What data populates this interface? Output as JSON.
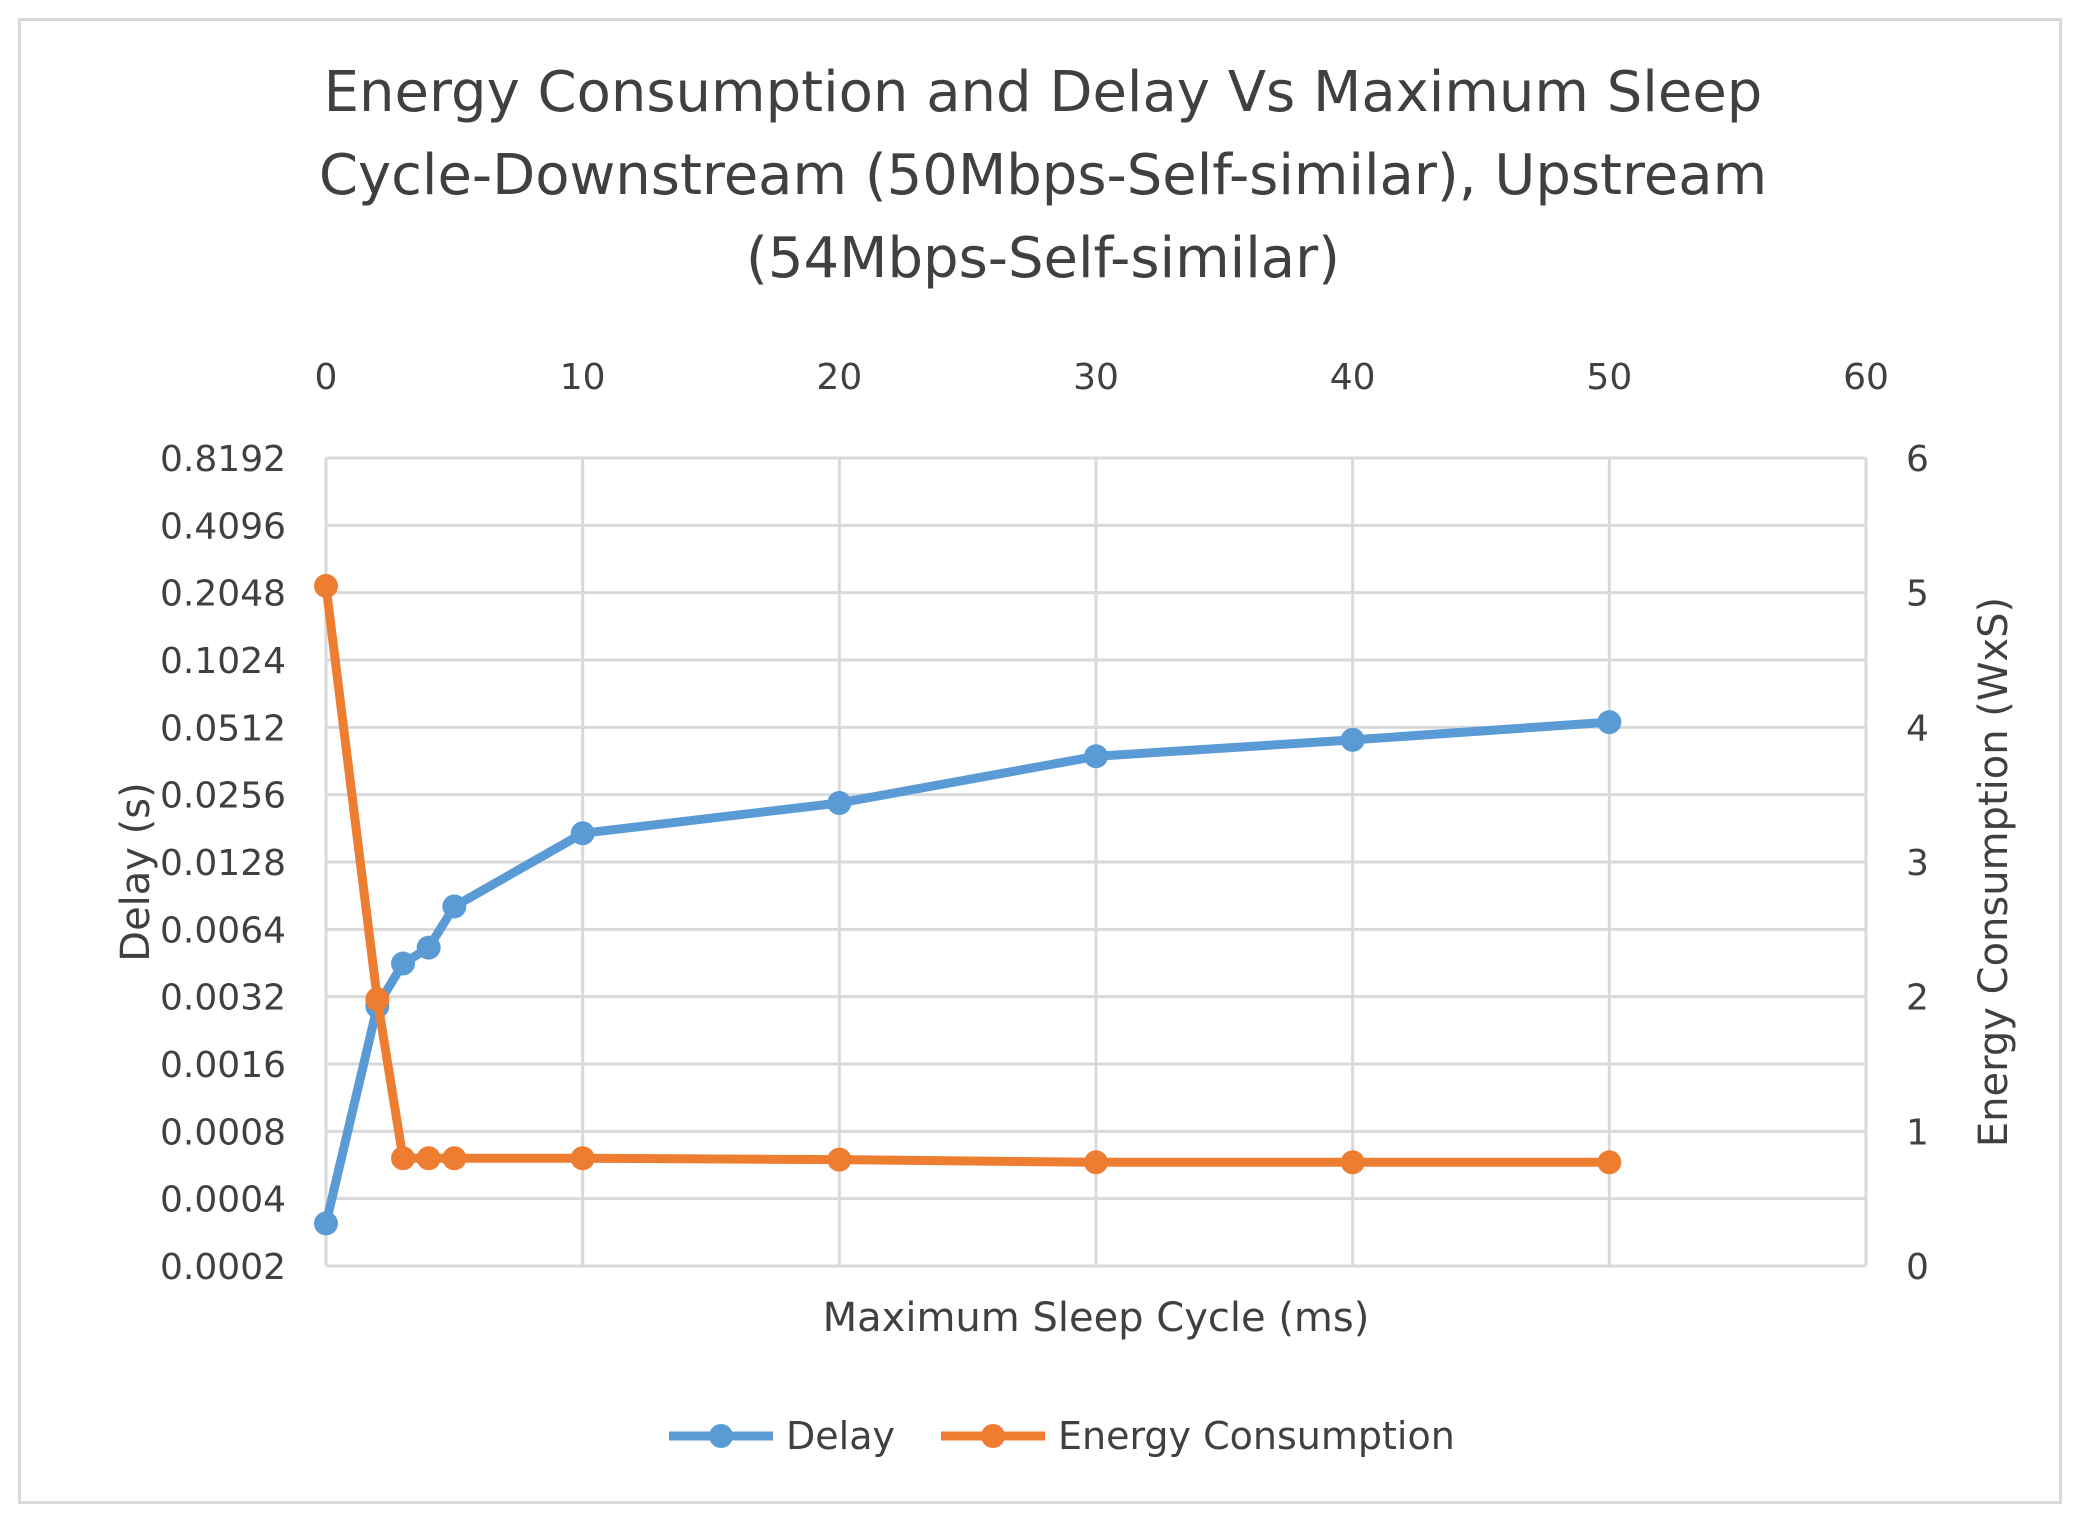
{
  "chart_data": {
    "type": "line",
    "title_lines": [
      "Energy Consumption and Delay Vs Maximum Sleep",
      "Cycle-Downstream (50Mbps-Self-similar), Upstream",
      "(54Mbps-Self-similar)"
    ],
    "xlabel": "Maximum Sleep Cycle (ms)",
    "ylabel_left": "Delay (s)",
    "ylabel_right": "Energy Consumption (WxS)",
    "x_ticks": [
      "0",
      "10",
      "20",
      "30",
      "40",
      "50",
      "60"
    ],
    "x_tick_values": [
      0,
      10,
      20,
      30,
      40,
      50,
      60
    ],
    "xlim": [
      0,
      60
    ],
    "y_left_scale": "log2",
    "y_left_ticks": [
      "0.8192",
      "0.4096",
      "0.2048",
      "0.1024",
      "0.0512",
      "0.0256",
      "0.0128",
      "0.0064",
      "0.0032",
      "0.0016",
      "0.0008",
      "0.0004",
      "0.0002"
    ],
    "y_left_tick_values": [
      0.8192,
      0.4096,
      0.2048,
      0.1024,
      0.0512,
      0.0256,
      0.0128,
      0.0064,
      0.0032,
      0.0016,
      0.0008,
      0.0004,
      0.0002
    ],
    "y_left_lim": [
      0.0002,
      0.8192
    ],
    "y_right_ticks": [
      "6",
      "5",
      "4",
      "3",
      "2",
      "1",
      "0"
    ],
    "y_right_tick_values": [
      6,
      5,
      4,
      3,
      2,
      1,
      0
    ],
    "y_right_lim": [
      0,
      6
    ],
    "grid": true,
    "legend_position": "bottom",
    "series": [
      {
        "name": "Delay",
        "axis": "left",
        "color": "#5b9bd5",
        "x": [
          0,
          2,
          3,
          4,
          5,
          10,
          20,
          30,
          40,
          50
        ],
        "y": [
          0.00031,
          0.0029,
          0.0045,
          0.0053,
          0.0081,
          0.0172,
          0.0235,
          0.038,
          0.045,
          0.054
        ]
      },
      {
        "name": "Energy Consumption",
        "axis": "right",
        "color": "#ed7d31",
        "x": [
          0,
          2,
          3,
          4,
          5,
          10,
          20,
          30,
          40,
          50
        ],
        "y": [
          5.05,
          1.98,
          0.8,
          0.8,
          0.8,
          0.8,
          0.79,
          0.77,
          0.77,
          0.77
        ]
      }
    ]
  }
}
